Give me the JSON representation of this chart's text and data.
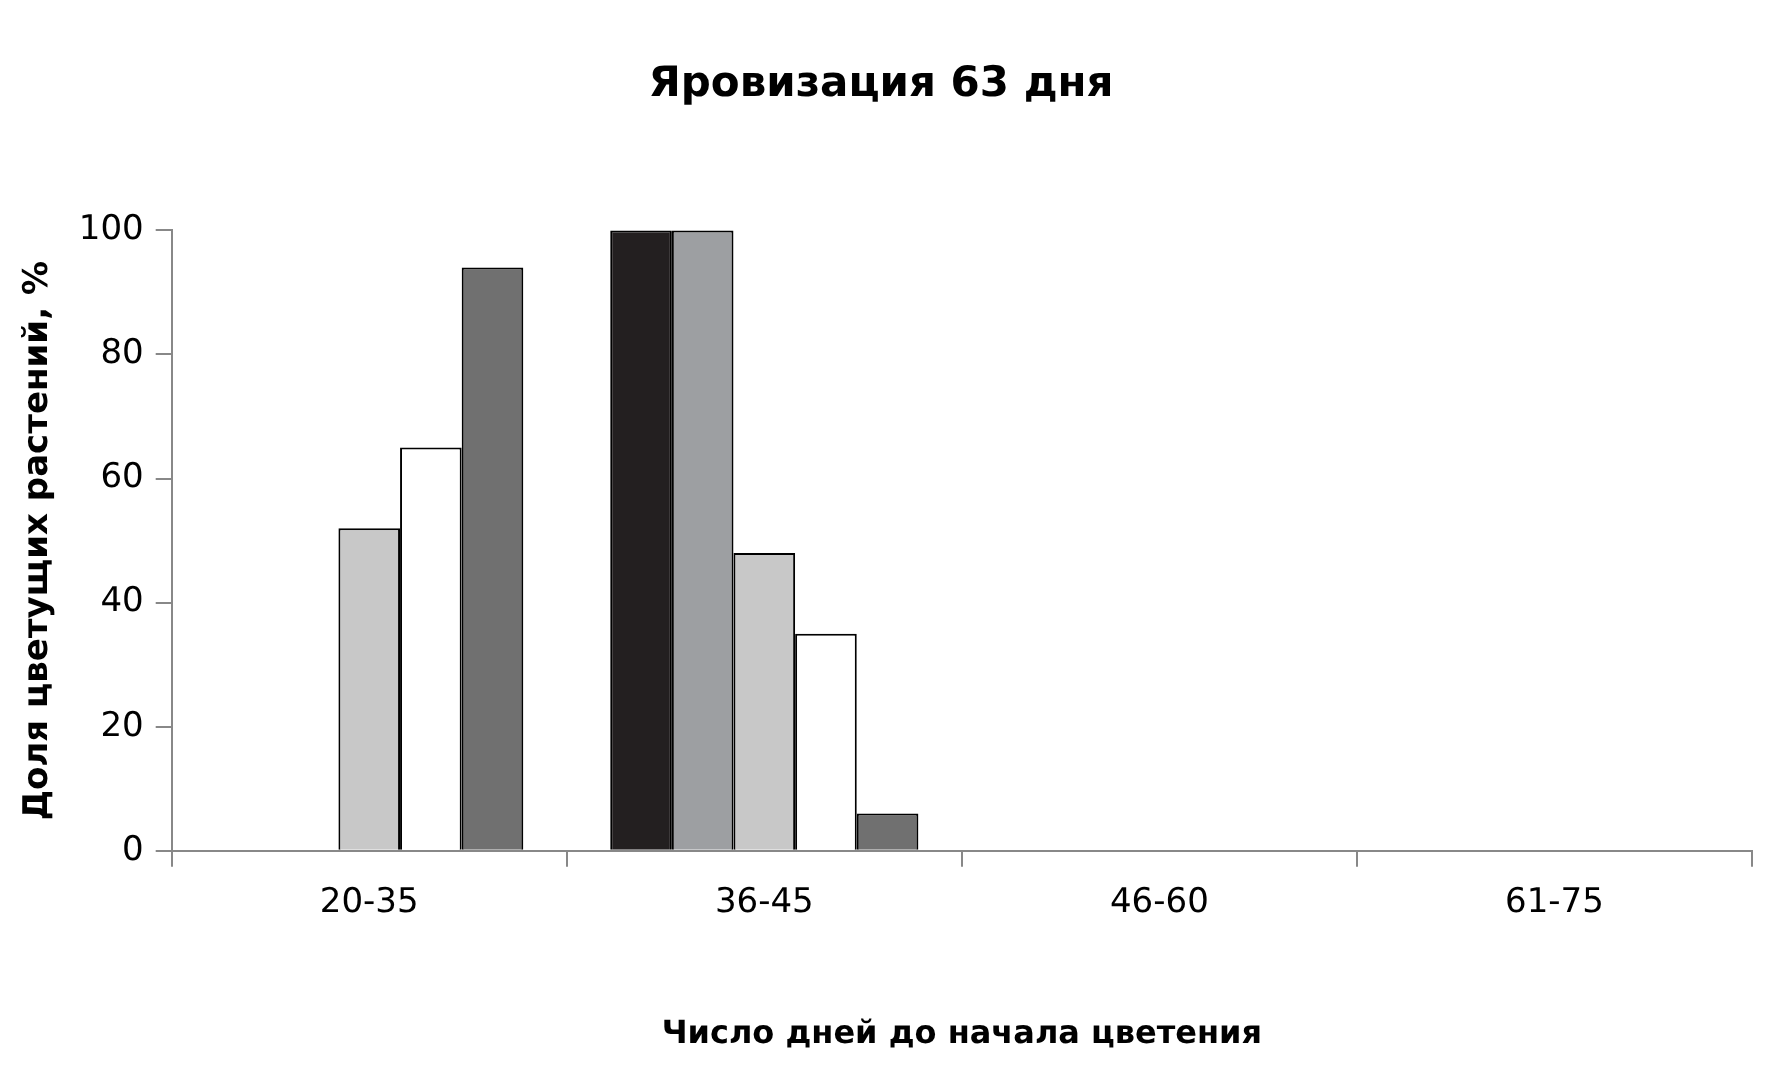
{
  "chart_data": {
    "type": "bar",
    "title": "Яровизация 63 дня",
    "xlabel": "Число дней до начала цветения",
    "ylabel": "Доля цветущих растений, %",
    "categories": [
      "20-35",
      "36-45",
      "46-60",
      "61-75"
    ],
    "series": [
      {
        "color": "#231f20",
        "values": [
          0,
          100,
          0,
          0
        ]
      },
      {
        "color": "#9d9fa2",
        "values": [
          0,
          100,
          0,
          0
        ]
      },
      {
        "color": "#c8c8c8",
        "values": [
          52,
          48,
          0,
          0
        ]
      },
      {
        "color": "#ffffff",
        "values": [
          65,
          35,
          0,
          0
        ]
      },
      {
        "color": "#707070",
        "values": [
          94,
          6,
          0,
          0
        ]
      }
    ],
    "ylim": [
      0,
      100
    ],
    "yticks": [
      0,
      20,
      40,
      60,
      80,
      100
    ],
    "grid": false,
    "legend": false
  }
}
